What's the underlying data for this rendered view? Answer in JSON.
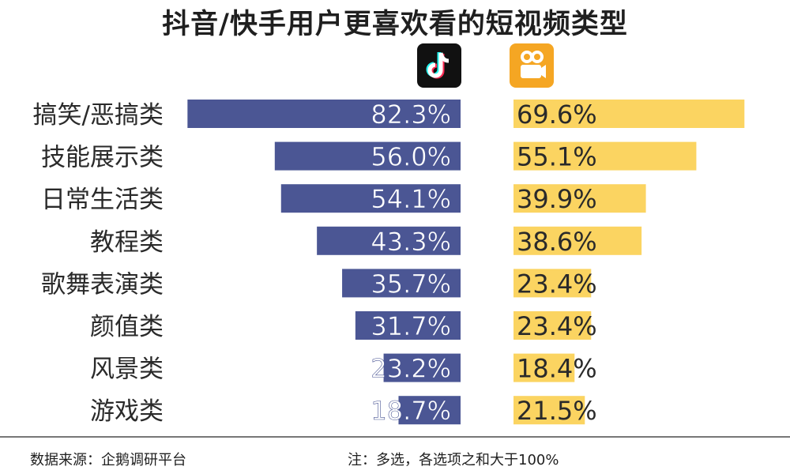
{
  "title": "抖音/快手用户更喜欢看的短视频类型",
  "icons": {
    "douyin": "douyin-logo-icon",
    "kuaishou": "kuaishou-logo-icon"
  },
  "footer": {
    "source": "数据来源：企鹅调研平台",
    "note": "注：多选，各选项之和大于100%"
  },
  "colors": {
    "douyin": "#4b5694",
    "kuaishou": "#fbd461"
  },
  "chart_data": {
    "type": "bar",
    "orientation": "horizontal-butterfly",
    "categories": [
      "搞笑/恶搞类",
      "技能展示类",
      "日常生活类",
      "教程类",
      "歌舞表演类",
      "颜值类",
      "风景类",
      "游戏类"
    ],
    "series": [
      {
        "values": [
          82.3,
          56.0,
          54.1,
          43.3,
          35.7,
          31.7,
          23.2,
          18.7
        ],
        "labels": [
          "82.3%",
          "56.0%",
          "54.1%",
          "43.3%",
          "35.7%",
          "31.7%",
          "23.2%",
          "18.7%"
        ]
      },
      {
        "values": [
          69.6,
          55.1,
          39.9,
          38.6,
          23.4,
          23.4,
          18.4,
          21.5
        ],
        "labels": [
          "69.6%",
          "55.1%",
          "39.9%",
          "38.6%",
          "23.4%",
          "23.4%",
          "18.4%",
          "21.5%"
        ]
      }
    ]
  }
}
